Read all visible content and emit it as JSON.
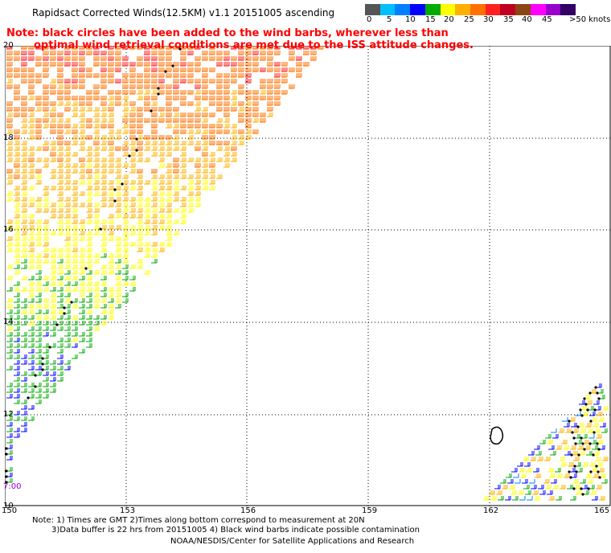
{
  "title": "Rapidsact Corrected Winds(12.5KM) v1.1 20151005 ascending",
  "note": {
    "line1": "Note: black circles have been added to the wind barbs, wherever less than",
    "line2": "optimal wind retrieval conditions are met due to the ISS attitude changes."
  },
  "legend": {
    "colors": [
      "#555555",
      "#00bfff",
      "#0080ff",
      "#0000ff",
      "#00aa00",
      "#ffff00",
      "#ffb000",
      "#ff7000",
      "#ff2020",
      "#c00020",
      "#8b4513",
      "#ff00ff",
      "#9900cc",
      "#330066"
    ],
    "labels": [
      "0",
      "5",
      "10",
      "15",
      "20",
      "25",
      "30",
      "35",
      "40",
      "45",
      ">50"
    ],
    "unit": "knots"
  },
  "map": {
    "lon_labels": [
      "150",
      "153",
      "156",
      "159",
      "162",
      "165"
    ],
    "lat_labels": [
      "20",
      "18",
      "16",
      "14",
      "12",
      "10"
    ],
    "time_label": "7:00"
  },
  "footer": {
    "line1": "Note: 1) Times are GMT 2)Times along bottom correspond to measurement at 20N",
    "line2": "3)Data buffer is 22 hrs from 20151005 4) Black wind barbs indicate possible contamination",
    "line3": "NOAA/NESDIS/Center for Satellite Applications and Research"
  }
}
